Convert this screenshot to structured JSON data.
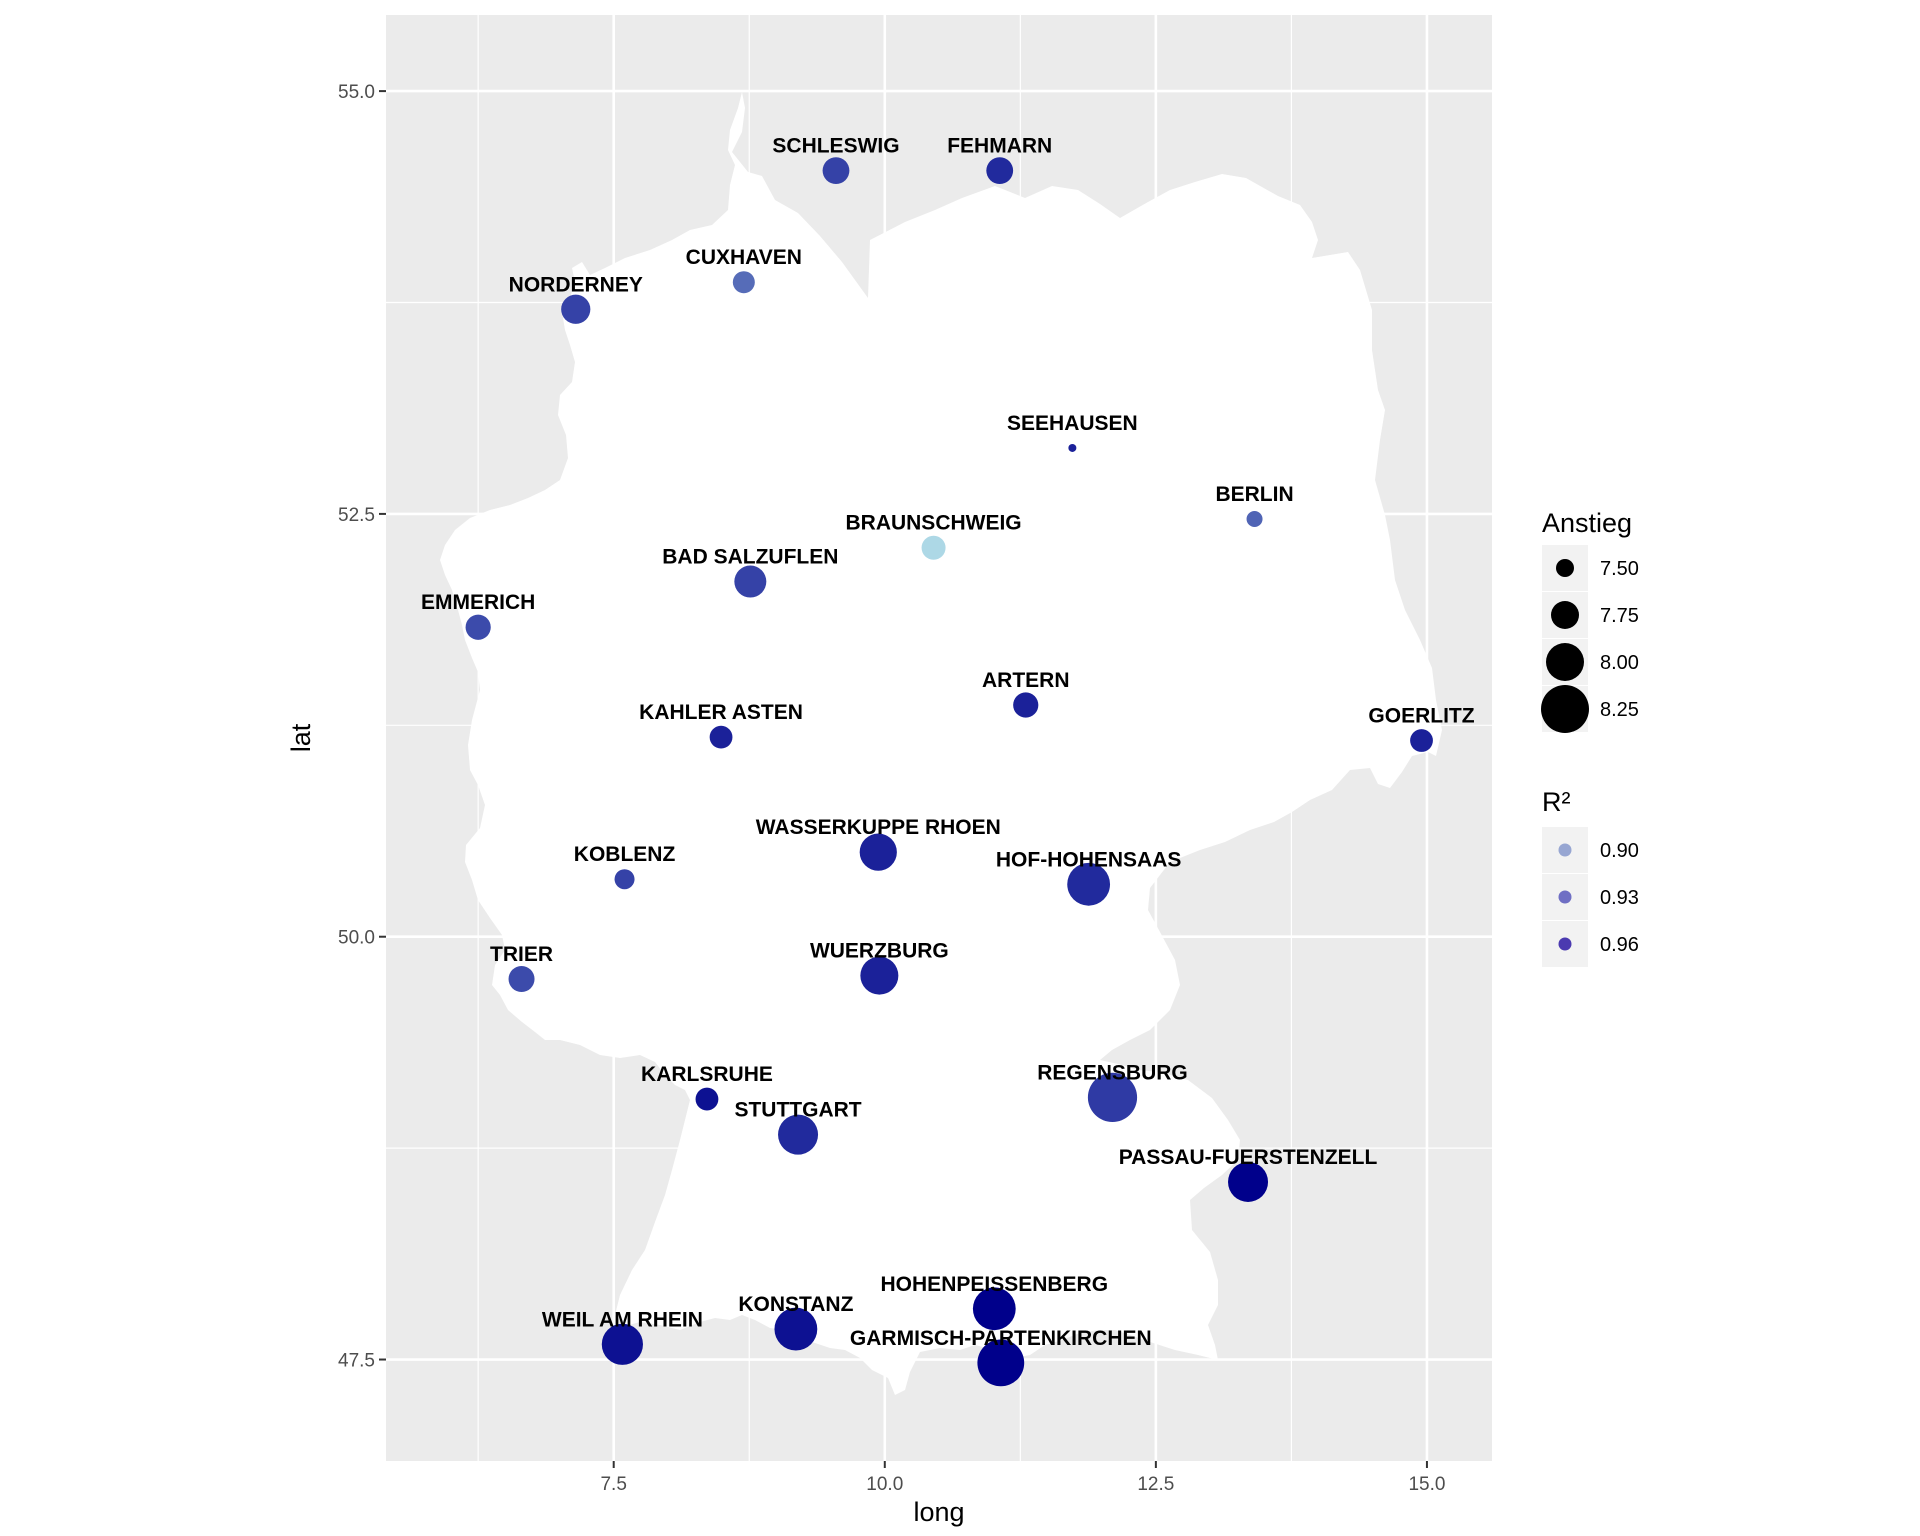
{
  "chart_data": {
    "type": "scatter",
    "title": "",
    "xlabel": "long",
    "ylabel": "lat",
    "xlim": [
      5.4,
      15.6
    ],
    "ylim": [
      46.9,
      55.45
    ],
    "xticks": [
      7.5,
      10.0,
      12.5,
      15.0
    ],
    "xtick_labels": [
      "7.5",
      "10.0",
      "12.5",
      "15.0"
    ],
    "yticks": [
      47.5,
      50.0,
      52.5,
      55.0
    ],
    "ytick_labels": [
      "47.5",
      "50.0",
      "52.5",
      "55.0"
    ],
    "grid": true,
    "basemap": "Germany outline",
    "size_legend": {
      "title": "Anstieg",
      "values": [
        7.5,
        7.75,
        8.0,
        8.25
      ],
      "labels": [
        "7.50",
        "7.75",
        "8.00",
        "8.25"
      ]
    },
    "color_legend": {
      "title": "R²",
      "values": [
        0.9,
        0.93,
        0.96
      ],
      "labels": [
        "0.90",
        "0.93",
        "0.96"
      ],
      "colors": [
        "#97a6d2",
        "#6f6fc4",
        "#4b3ab0"
      ]
    },
    "colors": {
      "low": "#add8e6",
      "high": "#00008b",
      "panel": "#ebebeb",
      "land": "#ffffff"
    },
    "points": [
      {
        "name": "SCHLESWIG",
        "long": 9.55,
        "lat": 54.53,
        "anstieg": 7.72,
        "r2": 0.955
      },
      {
        "name": "FEHMARN",
        "long": 11.06,
        "lat": 54.53,
        "anstieg": 7.72,
        "r2": 0.97
      },
      {
        "name": "CUXHAVEN",
        "long": 8.7,
        "lat": 53.87,
        "anstieg": 7.6,
        "r2": 0.93
      },
      {
        "name": "NORDERNEY",
        "long": 7.15,
        "lat": 53.71,
        "anstieg": 7.78,
        "r2": 0.955
      },
      {
        "name": "SEEHAUSEN",
        "long": 11.73,
        "lat": 52.89,
        "anstieg": 7.1,
        "r2": 0.975
      },
      {
        "name": "BERLIN",
        "long": 13.41,
        "lat": 52.47,
        "anstieg": 7.45,
        "r2": 0.935
      },
      {
        "name": "BRAUNSCHWEIG",
        "long": 10.45,
        "lat": 52.3,
        "anstieg": 7.65,
        "r2": 0.865
      },
      {
        "name": "BAD SALZUFLEN",
        "long": 8.76,
        "lat": 52.1,
        "anstieg": 7.85,
        "r2": 0.955
      },
      {
        "name": "EMMERICH",
        "long": 6.25,
        "lat": 51.83,
        "anstieg": 7.68,
        "r2": 0.95
      },
      {
        "name": "ARTERN",
        "long": 11.3,
        "lat": 51.37,
        "anstieg": 7.68,
        "r2": 0.975
      },
      {
        "name": "KAHLER ASTEN",
        "long": 8.49,
        "lat": 51.18,
        "anstieg": 7.62,
        "r2": 0.975
      },
      {
        "name": "GOERLITZ",
        "long": 14.95,
        "lat": 51.16,
        "anstieg": 7.62,
        "r2": 0.975
      },
      {
        "name": "WASSERKUPPE RHOEN",
        "long": 9.94,
        "lat": 50.5,
        "anstieg": 7.98,
        "r2": 0.975
      },
      {
        "name": "KOBLENZ",
        "long": 7.6,
        "lat": 50.34,
        "anstieg": 7.55,
        "r2": 0.955
      },
      {
        "name": "HOF-HOHENSAAS",
        "long": 11.88,
        "lat": 50.31,
        "anstieg": 8.12,
        "r2": 0.97
      },
      {
        "name": "WUERZBURG",
        "long": 9.95,
        "lat": 49.77,
        "anstieg": 8.0,
        "r2": 0.975
      },
      {
        "name": "TRIER",
        "long": 6.65,
        "lat": 49.75,
        "anstieg": 7.7,
        "r2": 0.95
      },
      {
        "name": "KARLSRUHE",
        "long": 8.36,
        "lat": 49.04,
        "anstieg": 7.62,
        "r2": 0.985
      },
      {
        "name": "REGENSBURG",
        "long": 12.1,
        "lat": 49.05,
        "anstieg": 8.28,
        "r2": 0.96
      },
      {
        "name": "STUTTGART",
        "long": 9.2,
        "lat": 48.83,
        "anstieg": 8.05,
        "r2": 0.97
      },
      {
        "name": "PASSAU-FUERSTENZELL",
        "long": 13.35,
        "lat": 48.55,
        "anstieg": 8.05,
        "r2": 0.995
      },
      {
        "name": "HOHENPEISSENBERG",
        "long": 11.01,
        "lat": 47.8,
        "anstieg": 8.12,
        "r2": 0.995
      },
      {
        "name": "KONSTANZ",
        "long": 9.18,
        "lat": 47.68,
        "anstieg": 8.12,
        "r2": 0.985
      },
      {
        "name": "WEIL AM RHEIN",
        "long": 7.58,
        "lat": 47.59,
        "anstieg": 8.08,
        "r2": 0.985
      },
      {
        "name": "GARMISCH-PARTENKIRCHEN",
        "long": 11.07,
        "lat": 47.48,
        "anstieg": 8.22,
        "r2": 0.995
      }
    ]
  }
}
